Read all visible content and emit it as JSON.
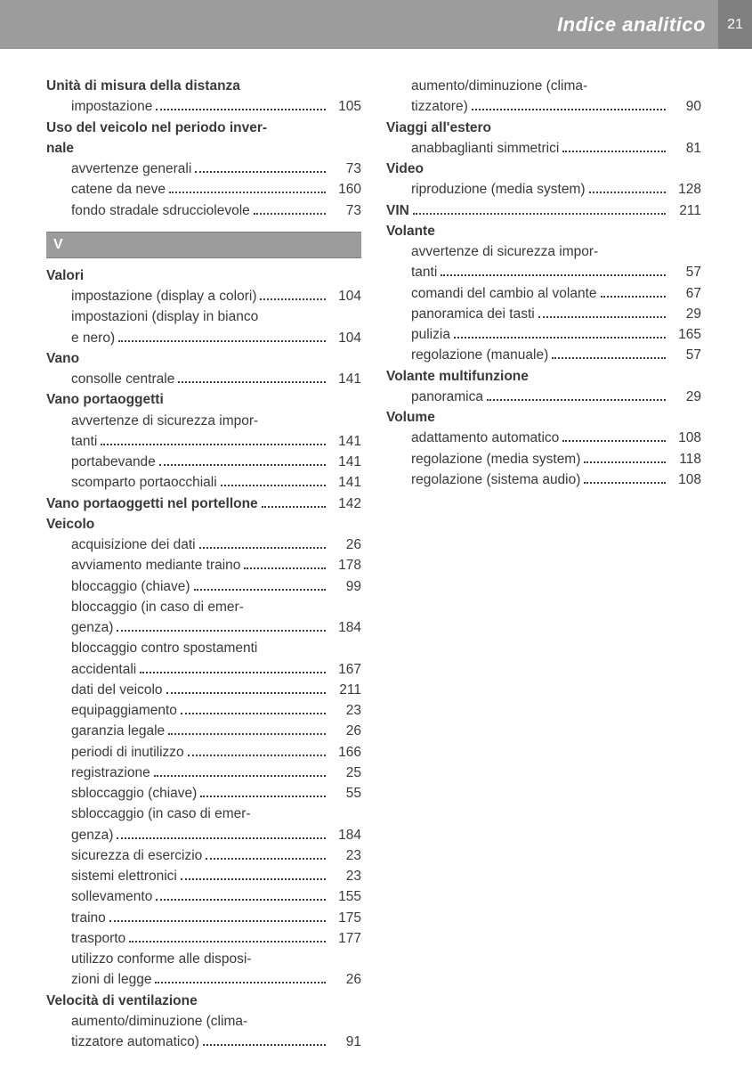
{
  "header": {
    "title": "Indice analitico",
    "page_number": "21"
  },
  "section_letter": "V",
  "col1": [
    {
      "type": "heading",
      "text": "Unità di misura della distanza"
    },
    {
      "type": "entry",
      "label": "impostazione",
      "page": "105"
    },
    {
      "type": "heading",
      "text": "Uso del veicolo nel periodo inver-"
    },
    {
      "type": "heading-cont",
      "text": "nale"
    },
    {
      "type": "entry",
      "label": "avvertenze generali",
      "page": "73"
    },
    {
      "type": "entry",
      "label": "catene da neve",
      "page": "160"
    },
    {
      "type": "entry",
      "label": "fondo stradale sdrucciolevole",
      "page": "73"
    },
    {
      "type": "section"
    },
    {
      "type": "heading",
      "text": "Valori"
    },
    {
      "type": "entry",
      "label": "impostazione (display a colori)",
      "page": "104"
    },
    {
      "type": "entry-start",
      "label": "impostazioni (display in bianco"
    },
    {
      "type": "entry-end",
      "label": "e nero)",
      "page": "104"
    },
    {
      "type": "heading",
      "text": "Vano"
    },
    {
      "type": "entry",
      "label": "consolle centrale",
      "page": "141"
    },
    {
      "type": "heading",
      "text": "Vano portaoggetti"
    },
    {
      "type": "entry-start",
      "label": "avvertenze di sicurezza impor-"
    },
    {
      "type": "entry-end",
      "label": "tanti",
      "page": "141"
    },
    {
      "type": "entry",
      "label": "portabevande",
      "page": "141"
    },
    {
      "type": "entry",
      "label": "scomparto portaocchiali",
      "page": "141"
    },
    {
      "type": "heading-entry",
      "label": "Vano portaoggetti nel portellone",
      "page": "142"
    },
    {
      "type": "heading",
      "text": "Veicolo"
    },
    {
      "type": "entry",
      "label": "acquisizione dei dati",
      "page": "26"
    },
    {
      "type": "entry",
      "label": "avviamento mediante traino",
      "page": "178"
    },
    {
      "type": "entry",
      "label": "bloccaggio (chiave)",
      "page": "99"
    },
    {
      "type": "entry-start",
      "label": "bloccaggio (in caso di emer-"
    },
    {
      "type": "entry-end",
      "label": "genza)",
      "page": "184"
    },
    {
      "type": "entry-start",
      "label": "bloccaggio contro spostamenti"
    },
    {
      "type": "entry-end",
      "label": "accidentali",
      "page": "167"
    },
    {
      "type": "entry",
      "label": "dati del veicolo",
      "page": "211"
    },
    {
      "type": "entry",
      "label": "equipaggiamento",
      "page": "23"
    },
    {
      "type": "entry",
      "label": "garanzia legale",
      "page": "26"
    },
    {
      "type": "entry",
      "label": "periodi di inutilizzo",
      "page": "166"
    },
    {
      "type": "entry",
      "label": "registrazione",
      "page": "25"
    },
    {
      "type": "entry",
      "label": "sbloccaggio (chiave)",
      "page": "55"
    },
    {
      "type": "entry-start",
      "label": "sbloccaggio (in caso di emer-"
    },
    {
      "type": "entry-end",
      "label": "genza)",
      "page": "184"
    },
    {
      "type": "entry",
      "label": "sicurezza di esercizio",
      "page": "23"
    },
    {
      "type": "entry",
      "label": "sistemi elettronici",
      "page": "23"
    },
    {
      "type": "entry",
      "label": "sollevamento",
      "page": "155"
    },
    {
      "type": "entry",
      "label": "traino",
      "page": "175"
    },
    {
      "type": "entry",
      "label": "trasporto",
      "page": "177"
    },
    {
      "type": "entry-start",
      "label": "utilizzo conforme alle disposi-"
    },
    {
      "type": "entry-end",
      "label": "zioni di legge",
      "page": "26"
    },
    {
      "type": "heading",
      "text": "Velocità di ventilazione"
    },
    {
      "type": "entry-start",
      "label": "aumento/diminuzione (clima-"
    },
    {
      "type": "entry-end",
      "label": "tizzatore automatico)",
      "page": "91"
    }
  ],
  "col2": [
    {
      "type": "entry-start",
      "label": "aumento/diminuzione (clima-"
    },
    {
      "type": "entry-end",
      "label": "tizzatore)",
      "page": "90"
    },
    {
      "type": "heading",
      "text": "Viaggi all'estero"
    },
    {
      "type": "entry",
      "label": "anabbaglianti simmetrici",
      "page": "81"
    },
    {
      "type": "heading",
      "text": "Video"
    },
    {
      "type": "entry",
      "label": "riproduzione (media system)",
      "page": "128"
    },
    {
      "type": "heading-entry",
      "label": "VIN",
      "page": "211"
    },
    {
      "type": "heading",
      "text": "Volante"
    },
    {
      "type": "entry-start",
      "label": "avvertenze di sicurezza impor-"
    },
    {
      "type": "entry-end",
      "label": "tanti",
      "page": "57"
    },
    {
      "type": "entry",
      "label": "comandi del cambio al volante",
      "page": "67"
    },
    {
      "type": "entry",
      "label": "panoramica dei tasti",
      "page": "29"
    },
    {
      "type": "entry",
      "label": "pulizia",
      "page": "165"
    },
    {
      "type": "entry",
      "label": "regolazione (manuale)",
      "page": "57"
    },
    {
      "type": "heading",
      "text": "Volante multifunzione"
    },
    {
      "type": "entry",
      "label": "panoramica",
      "page": "29"
    },
    {
      "type": "heading",
      "text": "Volume"
    },
    {
      "type": "entry",
      "label": "adattamento automatico",
      "page": "108"
    },
    {
      "type": "entry",
      "label": "regolazione (media system)",
      "page": "118"
    },
    {
      "type": "entry",
      "label": "regolazione (sistema audio)",
      "page": "108"
    }
  ]
}
